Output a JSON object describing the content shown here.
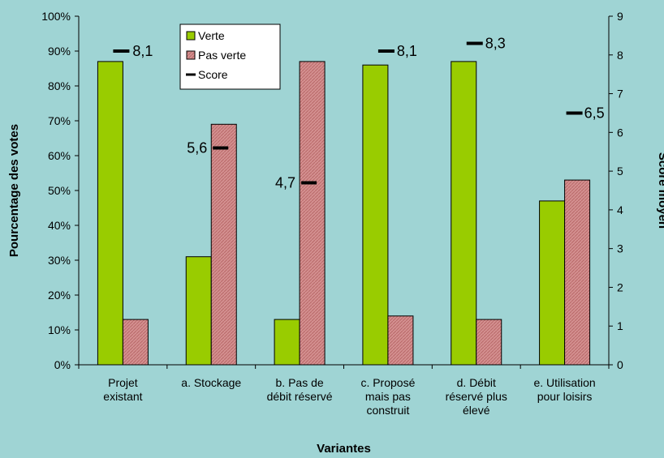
{
  "colors": {
    "background": "#9fd4d4",
    "verte": "#99cc00",
    "pas_verte": "#cc8080",
    "score": "#000000"
  },
  "chart_data": {
    "type": "bar",
    "categories": [
      [
        "Projet",
        "existant"
      ],
      [
        "a. Stockage"
      ],
      [
        "b. Pas de",
        "débit réservé"
      ],
      [
        "c. Proposé",
        "mais pas",
        "construit"
      ],
      [
        "d. Débit",
        "réservé plus",
        "élevé"
      ],
      [
        "e. Utilisation",
        "pour loisirs"
      ]
    ],
    "series": [
      {
        "name": "Verte",
        "axis": "left",
        "values": [
          87,
          31,
          13,
          86,
          87,
          47
        ]
      },
      {
        "name": "Pas verte",
        "axis": "left",
        "values": [
          13,
          69,
          87,
          14,
          13,
          53
        ]
      },
      {
        "name": "Score",
        "axis": "right",
        "marker": "dash",
        "values": [
          8.1,
          5.6,
          4.7,
          8.1,
          8.3,
          6.5
        ]
      }
    ],
    "score_labels": [
      "8,1",
      "5,6",
      "4,7",
      "8,1",
      "8,3",
      "6,5"
    ],
    "xlabel": "Variantes",
    "ylabel": "Pourcentage des votes",
    "y2label": "Score moyen",
    "ylim": [
      0,
      100
    ],
    "y2lim": [
      0,
      9
    ],
    "yticks": [
      "0%",
      "10%",
      "20%",
      "30%",
      "40%",
      "50%",
      "60%",
      "70%",
      "80%",
      "90%",
      "100%"
    ],
    "y2ticks": [
      "0",
      "1",
      "2",
      "3",
      "4",
      "5",
      "6",
      "7",
      "8",
      "9"
    ],
    "legend": [
      "Verte",
      "Pas verte",
      "Score"
    ],
    "legend_position": "top-left",
    "grid": false
  }
}
